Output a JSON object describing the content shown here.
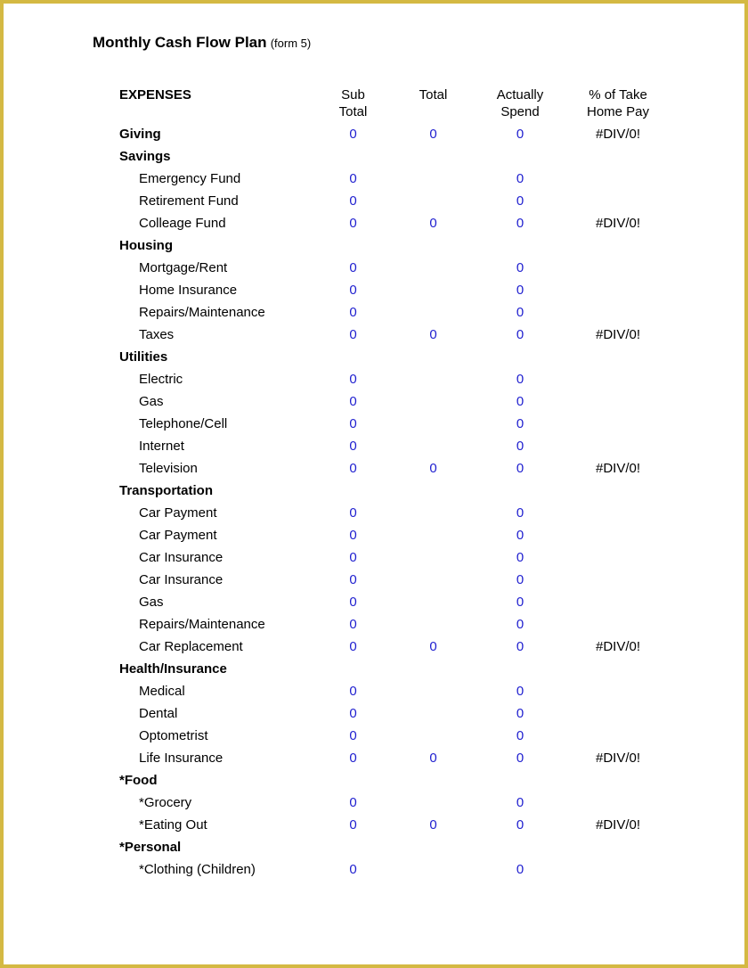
{
  "title": "Monthly Cash Flow Plan",
  "title_sub": "(form 5)",
  "columns": {
    "c0": "EXPENSES",
    "c1a": "Sub",
    "c1b": "Total",
    "c2": "Total",
    "c3a": "Actually",
    "c3b": "Spend",
    "c4a": "% of Take",
    "c4b": "Home Pay"
  },
  "colors": {
    "border": "#d4b943",
    "value_blue": "#1e1ecf",
    "text_black": "#000000",
    "background": "#ffffff"
  },
  "rows": [
    {
      "type": "cat",
      "label": "Giving",
      "sub": "0",
      "total": "0",
      "spend": "0",
      "pct": "#DIV/0!"
    },
    {
      "type": "cat",
      "label": "Savings"
    },
    {
      "type": "item",
      "label": "Emergency Fund",
      "sub": "0",
      "spend": "0"
    },
    {
      "type": "item",
      "label": "Retirement Fund",
      "sub": "0",
      "spend": "0"
    },
    {
      "type": "item",
      "label": "Colleage Fund",
      "sub": "0",
      "total": "0",
      "spend": "0",
      "pct": "#DIV/0!"
    },
    {
      "type": "cat",
      "label": "Housing"
    },
    {
      "type": "item",
      "label": "Mortgage/Rent",
      "sub": "0",
      "spend": "0"
    },
    {
      "type": "item",
      "label": "Home Insurance",
      "sub": "0",
      "spend": "0"
    },
    {
      "type": "item",
      "label": "Repairs/Maintenance",
      "sub": "0",
      "spend": "0"
    },
    {
      "type": "item",
      "label": "Taxes",
      "sub": "0",
      "total": "0",
      "spend": "0",
      "pct": "#DIV/0!"
    },
    {
      "type": "cat",
      "label": "Utilities"
    },
    {
      "type": "item",
      "label": "Electric",
      "sub": "0",
      "spend": "0"
    },
    {
      "type": "item",
      "label": "Gas",
      "sub": "0",
      "spend": "0"
    },
    {
      "type": "item",
      "label": "Telephone/Cell",
      "sub": "0",
      "spend": "0"
    },
    {
      "type": "item",
      "label": "Internet",
      "sub": "0",
      "spend": "0"
    },
    {
      "type": "item",
      "label": "Television",
      "sub": "0",
      "total": "0",
      "spend": "0",
      "pct": "#DIV/0!"
    },
    {
      "type": "cat",
      "label": "Transportation"
    },
    {
      "type": "item",
      "label": "Car Payment",
      "sub": "0",
      "spend": "0"
    },
    {
      "type": "item",
      "label": "Car Payment",
      "sub": "0",
      "spend": "0"
    },
    {
      "type": "item",
      "label": "Car Insurance",
      "sub": "0",
      "spend": "0"
    },
    {
      "type": "item",
      "label": "Car Insurance",
      "sub": "0",
      "spend": "0"
    },
    {
      "type": "item",
      "label": "Gas",
      "sub": "0",
      "spend": "0"
    },
    {
      "type": "item",
      "label": "Repairs/Maintenance",
      "sub": "0",
      "spend": "0"
    },
    {
      "type": "item",
      "label": "Car Replacement",
      "sub": "0",
      "total": "0",
      "spend": "0",
      "pct": "#DIV/0!"
    },
    {
      "type": "cat",
      "label": "Health/Insurance"
    },
    {
      "type": "item",
      "label": "Medical",
      "sub": "0",
      "spend": "0"
    },
    {
      "type": "item",
      "label": "Dental",
      "sub": "0",
      "spend": "0"
    },
    {
      "type": "item",
      "label": "Optometrist",
      "sub": "0",
      "spend": "0"
    },
    {
      "type": "item",
      "label": "Life Insurance",
      "sub": "0",
      "total": "0",
      "spend": "0",
      "pct": "#DIV/0!"
    },
    {
      "type": "cat",
      "label": "*Food"
    },
    {
      "type": "item",
      "label": "*Grocery",
      "sub": "0",
      "spend": "0"
    },
    {
      "type": "item",
      "label": "*Eating Out",
      "sub": "0",
      "total": "0",
      "spend": "0",
      "pct": "#DIV/0!"
    },
    {
      "type": "cat",
      "label": "*Personal"
    },
    {
      "type": "item",
      "label": "*Clothing (Children)",
      "sub": "0",
      "spend": "0"
    }
  ]
}
